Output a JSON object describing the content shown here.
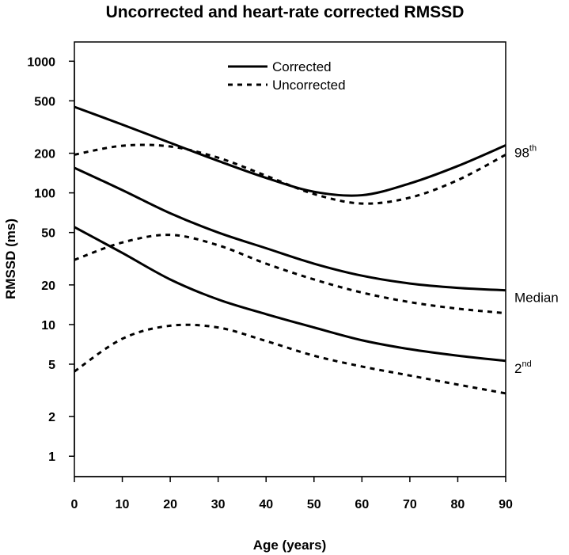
{
  "chart_data": {
    "type": "line",
    "title": "Uncorrected and heart-rate corrected RMSSD",
    "xlabel": "Age (years)",
    "ylabel": "RMSSD (ms)",
    "yscale": "log",
    "xlim": [
      0,
      90
    ],
    "ylim": [
      0.7,
      1400
    ],
    "x_ticks": [
      0,
      10,
      20,
      30,
      40,
      50,
      60,
      70,
      80,
      90
    ],
    "y_ticks": [
      1,
      2,
      5,
      10,
      20,
      50,
      100,
      200,
      500,
      1000
    ],
    "grid": false,
    "legend": {
      "position": "top-center",
      "entries": [
        {
          "label": "Corrected",
          "style": "solid"
        },
        {
          "label": "Uncorrected",
          "style": "dashed"
        }
      ]
    },
    "percentile_labels": [
      {
        "base": "98",
        "sup": "th",
        "series": "corrected_98th"
      },
      {
        "base": "Median",
        "sup": "",
        "series": "corrected_median"
      },
      {
        "base": "2",
        "sup": "nd",
        "series": "corrected_2nd"
      }
    ],
    "x": [
      0,
      10,
      20,
      30,
      40,
      50,
      60,
      70,
      80,
      90
    ],
    "series": [
      {
        "name": "corrected_98th",
        "group": "Corrected",
        "percentile": "98th",
        "style": "solid",
        "values": [
          450,
          330,
          240,
          175,
          130,
          102,
          96,
          118,
          160,
          230
        ]
      },
      {
        "name": "corrected_median",
        "group": "Corrected",
        "percentile": "Median",
        "style": "solid",
        "values": [
          155,
          105,
          70,
          50,
          38,
          29,
          23.5,
          20.5,
          19,
          18.2
        ]
      },
      {
        "name": "corrected_2nd",
        "group": "Corrected",
        "percentile": "2nd",
        "style": "solid",
        "values": [
          55,
          35,
          22,
          15.5,
          12,
          9.5,
          7.6,
          6.5,
          5.8,
          5.3
        ]
      },
      {
        "name": "uncorrected_98th",
        "group": "Uncorrected",
        "percentile": "98th",
        "style": "dashed",
        "values": [
          195,
          228,
          225,
          185,
          135,
          98,
          83,
          92,
          125,
          195
        ]
      },
      {
        "name": "uncorrected_median",
        "group": "Uncorrected",
        "percentile": "Median",
        "style": "dashed",
        "values": [
          31,
          42,
          48,
          40,
          29,
          22,
          17.5,
          14.8,
          13.2,
          12.2
        ]
      },
      {
        "name": "uncorrected_2nd",
        "group": "Uncorrected",
        "percentile": "2nd",
        "style": "dashed",
        "values": [
          4.4,
          7.8,
          9.8,
          9.5,
          7.5,
          5.8,
          4.8,
          4.1,
          3.5,
          3.0
        ]
      }
    ]
  }
}
